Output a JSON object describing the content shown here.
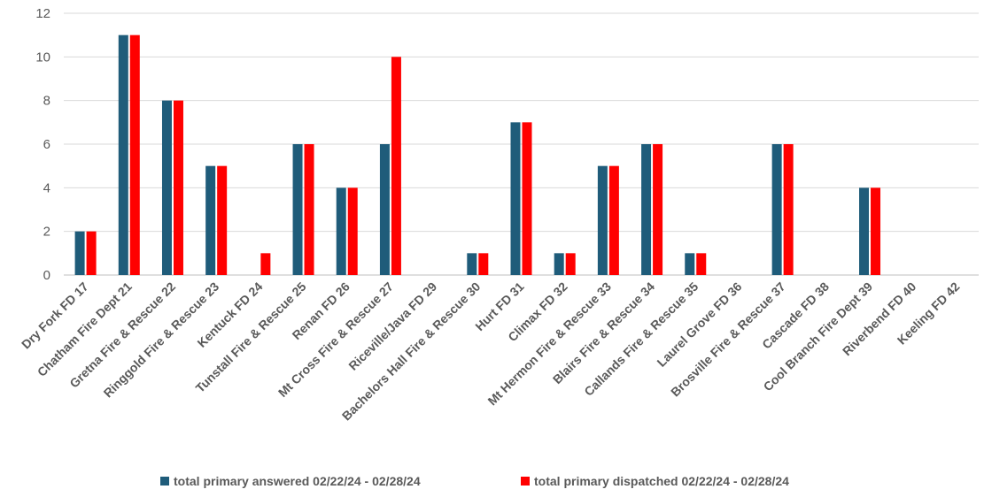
{
  "chart_data": {
    "type": "bar",
    "categories": [
      "Dry Fork FD  17",
      "Chatham Fire Dept 21",
      "Gretna Fire & Rescue 22",
      "Ringgold Fire & Rescue 23",
      "Kentuck FD 24",
      "Tunstall Fire & Rescue 25",
      "Renan FD 26",
      "Mt Cross Fire & Rescue 27",
      "Riceville/Java FD 29",
      "Bachelors Hall Fire & Rescue 30",
      "Hurt FD 31",
      "Climax FD  32",
      "Mt Hermon Fire & Rescue 33",
      "Blairs Fire & Rescue 34",
      "Callands Fire & Rescue 35",
      "Laurel Grove FD 36",
      "Brosville Fire & Rescue 37",
      "Cascade FD 38",
      "Cool Branch Fire Dept 39",
      "Riverbend FD 40",
      "Keeling FD 42"
    ],
    "series": [
      {
        "name": "total primary answered 02/22/24 - 02/28/24",
        "color": "#1f5c7a",
        "values": [
          2,
          11,
          8,
          5,
          0,
          6,
          4,
          6,
          0,
          1,
          7,
          1,
          5,
          6,
          1,
          0,
          6,
          0,
          4,
          0,
          0
        ]
      },
      {
        "name": "total primary dispatched 02/22/24 - 02/28/24",
        "color": "#ff0000",
        "values": [
          2,
          11,
          8,
          5,
          1,
          6,
          4,
          10,
          0,
          1,
          7,
          1,
          5,
          6,
          1,
          0,
          6,
          0,
          4,
          0,
          0
        ]
      }
    ],
    "yticks": [
      "0",
      "2",
      "4",
      "6",
      "8",
      "10",
      "12"
    ],
    "ylim": [
      0,
      12
    ],
    "grid": true,
    "legend_position": "bottom"
  }
}
